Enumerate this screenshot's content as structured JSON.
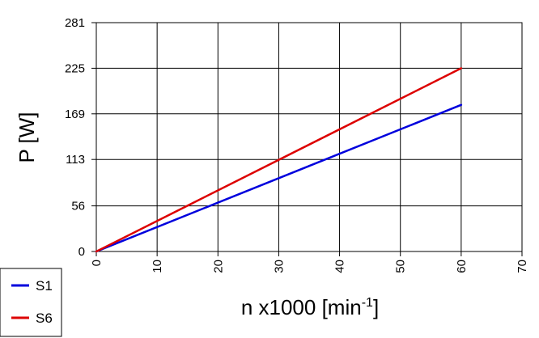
{
  "chart_data": {
    "type": "line",
    "xlabel": "n x1000 [min",
    "xlabel_sup": "-1",
    "xlabel_close": "]",
    "ylabel": "P [W]",
    "xlim": [
      0,
      70
    ],
    "ylim": [
      0,
      281
    ],
    "x_ticks": [
      "0",
      "10",
      "20",
      "30",
      "40",
      "50",
      "60",
      "70"
    ],
    "y_ticks": [
      "0",
      "56",
      "113",
      "169",
      "225",
      "281"
    ],
    "grid": true,
    "legend_position": "bottom-left",
    "series": [
      {
        "name": "S1",
        "color": "#0000dd",
        "x": [
          0,
          60
        ],
        "y": [
          0,
          180
        ]
      },
      {
        "name": "S6",
        "color": "#dd0000",
        "x": [
          0,
          60
        ],
        "y": [
          0,
          225
        ]
      }
    ]
  }
}
